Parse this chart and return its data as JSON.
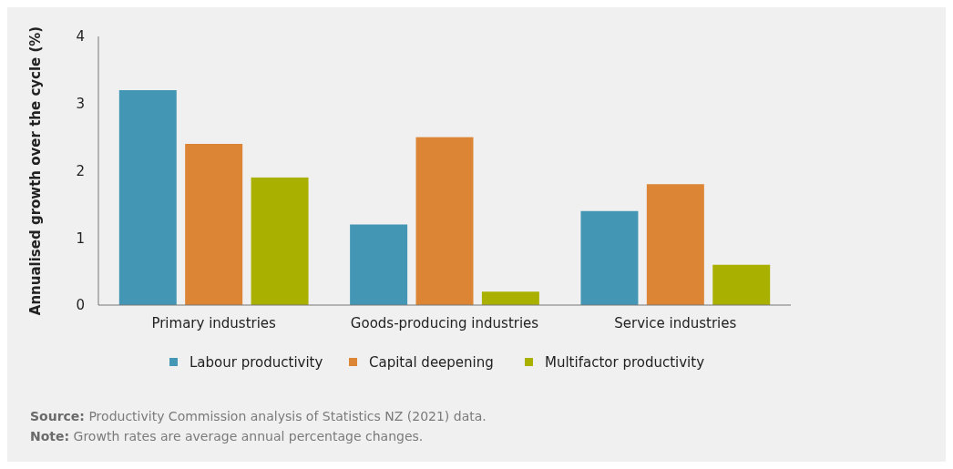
{
  "chart_data": {
    "type": "bar",
    "ylabel": "Annualised growth over the cycle (%)",
    "categories": [
      "Primary industries",
      "Goods-producing industries",
      "Service industries"
    ],
    "series": [
      {
        "name": "Labour productivity",
        "color": "#4397b5",
        "values": [
          3.2,
          1.2,
          1.4
        ]
      },
      {
        "name": "Capital deepening",
        "color": "#dc8535",
        "values": [
          2.4,
          2.5,
          1.8
        ]
      },
      {
        "name": "Multifactor productivity",
        "color": "#a9b000",
        "values": [
          1.9,
          0.2,
          0.6
        ]
      }
    ],
    "ylim": [
      0,
      4
    ],
    "yticks": [
      0,
      1,
      2,
      3,
      4
    ],
    "grid": false,
    "legend": "bottom",
    "annotations": [
      "Source: Productivity Commission analysis of Statistics NZ (2021) data.",
      "Note: Growth rates are average annual percentage changes."
    ]
  }
}
